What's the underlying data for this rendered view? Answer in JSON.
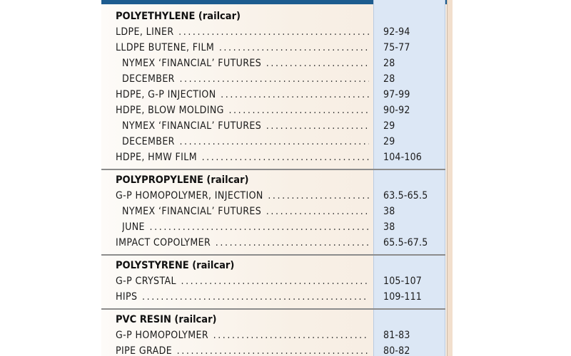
{
  "sections": [
    {
      "title": "POLYETHYLENE (railcar)",
      "rows": [
        {
          "label": "LDPE, LINER",
          "value": "92-94",
          "sub": false
        },
        {
          "label": "LLDPE BUTENE, FILM",
          "value": "75-77",
          "sub": false
        },
        {
          "label": "NYMEX ‘FINANCIAL’ FUTURES",
          "value": "28",
          "sub": true
        },
        {
          "label": "DECEMBER",
          "value": "28",
          "sub": true
        },
        {
          "label": "HDPE, G-P INJECTION",
          "value": "97-99",
          "sub": false
        },
        {
          "label": "HDPE, BLOW MOLDING",
          "value": "90-92",
          "sub": false
        },
        {
          "label": "NYMEX ‘FINANCIAL’ FUTURES",
          "value": "29",
          "sub": true
        },
        {
          "label": "DECEMBER",
          "value": "29",
          "sub": true
        },
        {
          "label": "HDPE, HMW FILM",
          "value": "104-106",
          "sub": false
        }
      ]
    },
    {
      "title": "POLYPROPYLENE (railcar)",
      "rows": [
        {
          "label": "G-P HOMOPOLYMER, INJECTION",
          "value": "63.5-65.5",
          "sub": false
        },
        {
          "label": "NYMEX ‘FINANCIAL’ FUTURES",
          "value": "38",
          "sub": true
        },
        {
          "label": "JUNE",
          "value": "38",
          "sub": true
        },
        {
          "label": "IMPACT COPOLYMER",
          "value": "65.5-67.5",
          "sub": false
        }
      ]
    },
    {
      "title": "POLYSTYRENE (railcar)",
      "rows": [
        {
          "label": "G-P CRYSTAL",
          "value": "105-107",
          "sub": false
        },
        {
          "label": "HIPS",
          "value": "109-111",
          "sub": false
        }
      ]
    },
    {
      "title": "PVC RESIN (railcar)",
      "rows": [
        {
          "label": "G-P HOMOPOLYMER",
          "value": "81-83",
          "sub": false
        },
        {
          "label": "PIPE GRADE",
          "value": "80-82",
          "sub": false
        }
      ]
    }
  ],
  "colors": {
    "header_bar": "#1d5c8f",
    "price_column": "#dce7f5",
    "panel_background": "#f8f0e6"
  }
}
